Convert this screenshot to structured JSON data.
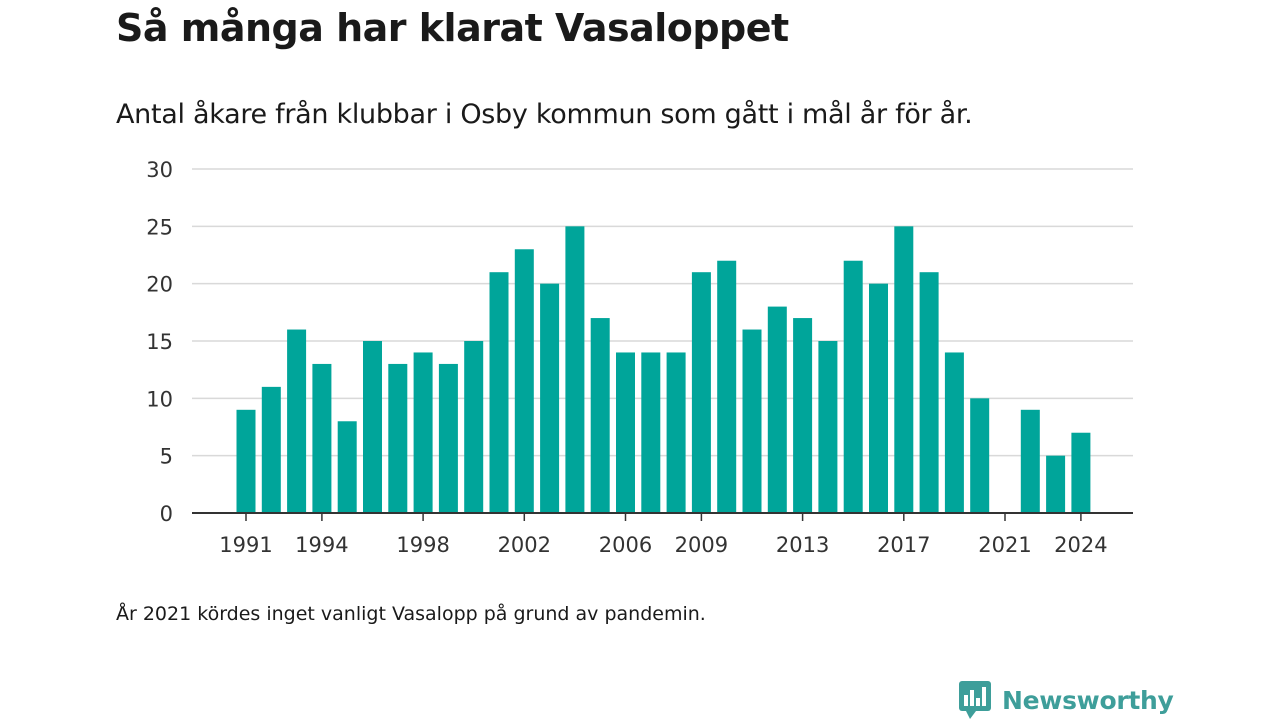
{
  "header": {
    "title": "Så många har klarat Vasaloppet",
    "subtitle": "Antal åkare från klubbar i Osby kommun som gått i mål år för år."
  },
  "footnote": "År 2021 kördes inget vanligt Vasalopp på grund av pandemin.",
  "brand": {
    "name": "Newsworthy",
    "color": "#3e9e9a",
    "icon": "newsworthy-logo-icon"
  },
  "colors": {
    "bar": "#00a59a",
    "grid": "#d9d9d9",
    "axis": "#333333"
  },
  "chart_data": {
    "type": "bar",
    "title": "Så många har klarat Vasaloppet",
    "subtitle": "Antal åkare från klubbar i Osby kommun som gått i mål år för år.",
    "xlabel": "",
    "ylabel": "",
    "ylim": [
      0,
      30
    ],
    "yticks": [
      0,
      5,
      10,
      15,
      20,
      25,
      30
    ],
    "xtick_labels": [
      "1991",
      "1994",
      "1998",
      "2002",
      "2006",
      "2009",
      "2013",
      "2017",
      "2021",
      "2024"
    ],
    "grid": true,
    "legend": "none",
    "categories": [
      "1991",
      "1992",
      "1993",
      "1994",
      "1995",
      "1996",
      "1997",
      "1998",
      "1999",
      "2000",
      "2001",
      "2002",
      "2003",
      "2004",
      "2005",
      "2006",
      "2007",
      "2008",
      "2009",
      "2010",
      "2011",
      "2012",
      "2013",
      "2014",
      "2015",
      "2016",
      "2017",
      "2018",
      "2019",
      "2020",
      "2021",
      "2022",
      "2023",
      "2024"
    ],
    "values": [
      9,
      11,
      16,
      13,
      8,
      15,
      13,
      14,
      13,
      15,
      21,
      23,
      20,
      25,
      17,
      14,
      14,
      14,
      21,
      22,
      16,
      18,
      17,
      15,
      22,
      20,
      25,
      21,
      14,
      10,
      null,
      9,
      5,
      7
    ]
  }
}
